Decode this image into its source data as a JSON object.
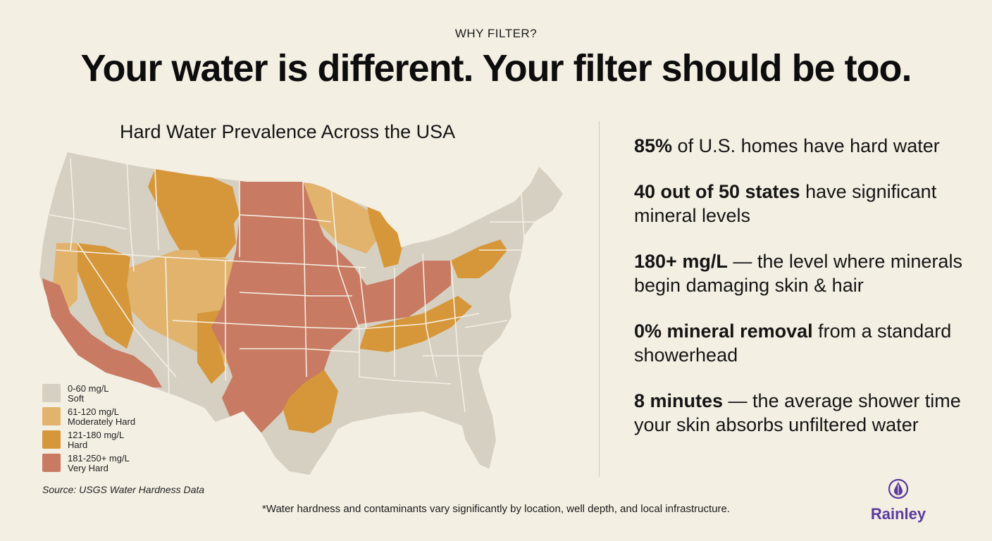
{
  "header": {
    "eyebrow": "WHY FILTER?",
    "headline": "Your water is different. Your filter should be too."
  },
  "map": {
    "title": "Hard Water Prevalence Across the USA",
    "colors": {
      "soft": "#d6d0c2",
      "moderate": "#e2b36d",
      "hard": "#d6973a",
      "very_hard": "#c87a62",
      "border": "#f4efe3"
    }
  },
  "legend": [
    {
      "range": "0-60 mg/L",
      "label": "Soft",
      "color": "#d6d0c2"
    },
    {
      "range": "61-120 mg/L",
      "label": "Moderately Hard",
      "color": "#e2b36d"
    },
    {
      "range": "121-180 mg/L",
      "label": "Hard",
      "color": "#d6973a"
    },
    {
      "range": "181-250+ mg/L",
      "label": "Very Hard",
      "color": "#c87a62"
    }
  ],
  "source": "Source: USGS Water Hardness Data",
  "stats": [
    {
      "bold": "85%",
      "rest": " of U.S. homes have hard water"
    },
    {
      "bold": "40 out of 50 states",
      "rest": " have significant mineral levels"
    },
    {
      "bold": "180+ mg/L",
      "rest": " — the level where minerals begin damaging skin & hair"
    },
    {
      "bold": "0% mineral removal",
      "rest": " from a standard showerhead"
    },
    {
      "bold": "8 minutes",
      "rest": " — the average shower time your skin absorbs unfiltered water"
    }
  ],
  "footnote": "*Water hardness and contaminants vary significantly by location, well depth, and local infrastructure.",
  "brand": {
    "name": "Rainley",
    "icon": "droplet-icon",
    "color": "#5b3a9e"
  }
}
